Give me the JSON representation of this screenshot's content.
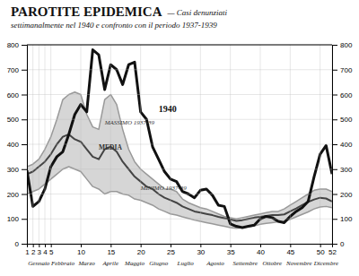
{
  "chart_data": {
    "type": "line",
    "title": "PAROTITE EPIDEMICA",
    "subtitle": [
      "— Casi denunziati",
      "settimanalmente nel 1940 e confronto con il periodo 1937-1939"
    ],
    "x": [
      1,
      2,
      3,
      4,
      5,
      6,
      7,
      8,
      9,
      10,
      11,
      12,
      13,
      14,
      15,
      16,
      17,
      18,
      19,
      20,
      21,
      22,
      23,
      24,
      25,
      26,
      27,
      28,
      29,
      30,
      31,
      32,
      33,
      34,
      35,
      36,
      37,
      38,
      39,
      40,
      41,
      42,
      43,
      44,
      45,
      46,
      47,
      48,
      49,
      50,
      51,
      52
    ],
    "xlim": [
      1,
      52
    ],
    "xticks": [
      1,
      2,
      3,
      4,
      5,
      10,
      15,
      20,
      25,
      30,
      35,
      40,
      45,
      50,
      52
    ],
    "ylim": [
      0,
      800
    ],
    "yticks": [
      0,
      100,
      200,
      300,
      400,
      500,
      600,
      700,
      800
    ],
    "y2lim": [
      0,
      800
    ],
    "y2ticks": [
      0,
      100,
      200,
      300,
      400,
      500,
      600,
      700,
      800
    ],
    "grid": true,
    "series": [
      {
        "type": "area",
        "color": "#c8c8c8",
        "values": [
          310,
          320,
          340,
          380,
          430,
          500,
          580,
          600,
          610,
          600,
          520,
          470,
          460,
          580,
          600,
          560,
          460,
          380,
          330,
          300,
          280,
          260,
          240,
          220,
          220,
          210,
          180,
          165,
          155,
          145,
          140,
          130,
          120,
          110,
          105,
          100,
          105,
          110,
          115,
          120,
          125,
          130,
          130,
          140,
          155,
          170,
          185,
          200,
          215,
          220,
          220,
          210
        ],
        "low": [
          200,
          210,
          220,
          240,
          260,
          280,
          300,
          310,
          300,
          290,
          260,
          230,
          220,
          200,
          210,
          210,
          200,
          195,
          180,
          175,
          165,
          155,
          140,
          130,
          120,
          115,
          108,
          102,
          95,
          90,
          85,
          80,
          75,
          70,
          65,
          62,
          65,
          68,
          72,
          78,
          82,
          85,
          88,
          90,
          98,
          108,
          118,
          128,
          140,
          148,
          150,
          145
        ]
      },
      {
        "type": "line",
        "color": "#999999",
        "values": [
          310,
          320,
          340,
          380,
          430,
          500,
          580,
          600,
          610,
          600,
          520,
          470,
          460,
          580,
          600,
          560,
          460,
          380,
          330,
          300,
          280,
          260,
          240,
          220,
          220,
          210,
          180,
          165,
          155,
          145,
          140,
          130,
          120,
          110,
          105,
          100,
          105,
          110,
          115,
          120,
          125,
          130,
          130,
          140,
          155,
          170,
          185,
          200,
          215,
          220,
          220,
          210
        ]
      },
      {
        "type": "line",
        "color": "#999999",
        "values": [
          200,
          210,
          220,
          240,
          260,
          280,
          300,
          310,
          300,
          290,
          260,
          230,
          220,
          200,
          210,
          210,
          200,
          195,
          180,
          175,
          165,
          155,
          140,
          130,
          120,
          115,
          108,
          102,
          95,
          90,
          85,
          80,
          75,
          70,
          65,
          62,
          65,
          68,
          72,
          78,
          82,
          85,
          88,
          90,
          98,
          108,
          118,
          128,
          140,
          148,
          150,
          145
        ]
      },
      {
        "type": "line",
        "color": "#444444",
        "values": [
          280,
          290,
          310,
          330,
          360,
          400,
          430,
          440,
          420,
          410,
          380,
          350,
          340,
          380,
          390,
          370,
          330,
          300,
          270,
          250,
          230,
          220,
          200,
          185,
          175,
          165,
          150,
          140,
          130,
          125,
          120,
          115,
          108,
          103,
          98,
          92,
          95,
          100,
          105,
          108,
          112,
          115,
          115,
          118,
          130,
          142,
          155,
          168,
          178,
          185,
          182,
          170
        ]
      },
      {
        "type": "line",
        "color": "#111111",
        "values": [
          295,
          150,
          170,
          220,
          310,
          350,
          370,
          440,
          520,
          560,
          530,
          780,
          760,
          620,
          720,
          700,
          640,
          720,
          730,
          530,
          500,
          390,
          340,
          290,
          260,
          250,
          210,
          200,
          185,
          215,
          220,
          195,
          155,
          150,
          80,
          70,
          65,
          70,
          75,
          100,
          110,
          105,
          90,
          85,
          110,
          130,
          145,
          170,
          270,
          360,
          395,
          280
        ]
      }
    ],
    "annotations": [
      {
        "text": "1940",
        "x": 23,
        "y": 530
      },
      {
        "text": "MASSIMO 1937-39",
        "x": 14,
        "y": 478
      },
      {
        "text": "MEDIA",
        "x": 13,
        "y": 378
      },
      {
        "text": "MINIMO 1937-39",
        "x": 20,
        "y": 215
      },
      {
        "text": "Gennaio",
        "x": 3
      },
      {
        "text": "Febbraio",
        "x": 7
      },
      {
        "text": "Marzo",
        "x": 11
      },
      {
        "text": "Aprile",
        "x": 15
      },
      {
        "text": "Maggio",
        "x": 19
      },
      {
        "text": "Giugno",
        "x": 23
      },
      {
        "text": "Luglio",
        "x": 27.5
      },
      {
        "text": "Agosto",
        "x": 32.5
      },
      {
        "text": "Settembre",
        "x": 37.5
      },
      {
        "text": "Ottobre",
        "x": 42
      },
      {
        "text": "Novembre",
        "x": 46.5
      },
      {
        "text": "Dicembre",
        "x": 51
      }
    ]
  }
}
